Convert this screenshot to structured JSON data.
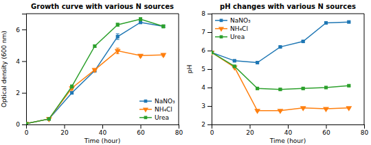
{
  "chart_data": [
    {
      "type": "line",
      "title": "Growth curve with various N sources",
      "xlabel": "Time (hour)",
      "ylabel": "Optical density (600 nm)",
      "x": [
        0,
        12,
        24,
        36,
        48,
        60,
        72
      ],
      "series": [
        {
          "name": "NaNO₃",
          "marker": "square",
          "values": [
            0.05,
            0.35,
            2.0,
            3.4,
            5.55,
            6.45,
            6.2
          ],
          "errors": [
            0.02,
            0.03,
            0.08,
            0.08,
            0.18,
            0.08,
            0.08
          ]
        },
        {
          "name": "NH₄Cl",
          "marker": "triangle-down",
          "values": [
            0.05,
            0.35,
            2.3,
            3.45,
            4.65,
            4.35,
            4.4
          ],
          "errors": [
            0.02,
            0.03,
            0.1,
            0.08,
            0.18,
            0.08,
            0.08
          ]
        },
        {
          "name": "Urea",
          "marker": "square",
          "values": [
            0.05,
            0.35,
            2.4,
            4.95,
            6.3,
            6.65,
            6.2
          ],
          "errors": [
            0.02,
            0.03,
            0.1,
            0.08,
            0.1,
            0.1,
            0.1
          ]
        }
      ],
      "xlim": [
        0,
        80
      ],
      "ylim": [
        0,
        7
      ],
      "xticks": [
        0,
        20,
        40,
        60,
        80
      ],
      "yticks": [
        0,
        2,
        4,
        6
      ],
      "grid": false,
      "legend": "lower-right"
    },
    {
      "type": "line",
      "title": "pH changes with various N sources",
      "xlabel": "Time (hour)",
      "ylabel": "pH",
      "x": [
        0,
        12,
        24,
        36,
        48,
        60,
        72
      ],
      "series": [
        {
          "name": "NaNO₃",
          "marker": "square",
          "values": [
            5.9,
            5.45,
            5.35,
            6.2,
            6.5,
            7.5,
            7.55
          ],
          "errors": [
            0.04,
            0.04,
            0.04,
            0.04,
            0.04,
            0.04,
            0.04
          ]
        },
        {
          "name": "NH₄Cl",
          "marker": "triangle-down",
          "values": [
            5.9,
            5.1,
            2.75,
            2.75,
            2.9,
            2.85,
            2.9
          ],
          "errors": [
            0.04,
            0.04,
            0.04,
            0.04,
            0.04,
            0.04,
            0.04
          ]
        },
        {
          "name": "Urea",
          "marker": "square",
          "values": [
            5.9,
            5.15,
            3.95,
            3.9,
            3.95,
            4.0,
            4.1
          ],
          "errors": [
            0.04,
            0.04,
            0.04,
            0.04,
            0.04,
            0.04,
            0.04
          ]
        }
      ],
      "xlim": [
        0,
        80
      ],
      "ylim": [
        2,
        8
      ],
      "xticks": [
        0,
        20,
        40,
        60,
        80
      ],
      "yticks": [
        2,
        3,
        4,
        5,
        6,
        7,
        8
      ],
      "grid": false,
      "legend": "upper-left"
    }
  ]
}
